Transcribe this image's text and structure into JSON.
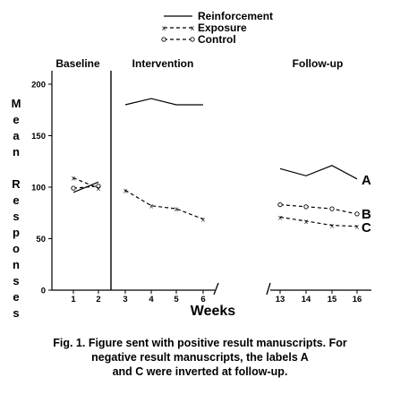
{
  "chart_data": {
    "type": "line",
    "xlabel": "Weeks",
    "ylabel": "Mean Responses",
    "ylim": [
      0,
      200
    ],
    "yticks": [
      0,
      50,
      100,
      150,
      200
    ],
    "phases": [
      "Baseline",
      "Intervention",
      "Follow-up"
    ],
    "x_ticks": [
      1,
      2,
      3,
      4,
      5,
      6,
      13,
      14,
      15,
      16
    ],
    "legend_position": "top",
    "series": [
      {
        "name": "Reinforcement",
        "marker": "none",
        "style": "solid",
        "segments": [
          {
            "x": [
              1,
              2
            ],
            "y": [
              95,
              105
            ]
          },
          {
            "x": [
              3,
              4,
              5,
              6
            ],
            "y": [
              180,
              186,
              180,
              180
            ]
          },
          {
            "x": [
              13,
              14,
              15,
              16
            ],
            "y": [
              118,
              111,
              121,
              108
            ]
          }
        ],
        "end_label": "A"
      },
      {
        "name": "Control",
        "marker": "o",
        "style": "dashed",
        "segments": [
          {
            "x": [
              1,
              2
            ],
            "y": [
              99,
              101
            ]
          },
          {
            "x": [
              13,
              14,
              15,
              16
            ],
            "y": [
              83,
              81,
              79,
              74
            ]
          }
        ],
        "end_label": "B"
      },
      {
        "name": "Exposure",
        "marker": "x",
        "style": "dashed",
        "segments": [
          {
            "x": [
              1,
              2
            ],
            "y": [
              109,
              99
            ]
          },
          {
            "x": [
              3,
              4,
              5,
              6
            ],
            "y": [
              97,
              82,
              79,
              69
            ]
          },
          {
            "x": [
              13,
              14,
              15,
              16
            ],
            "y": [
              71,
              67,
              63,
              62
            ]
          }
        ],
        "end_label": "C"
      }
    ]
  },
  "caption": {
    "line1": "Fig. 1. Figure sent with positive result manuscripts. For",
    "line2": "negative result manuscripts, the labels A",
    "line3": "and C were inverted at follow-up."
  }
}
